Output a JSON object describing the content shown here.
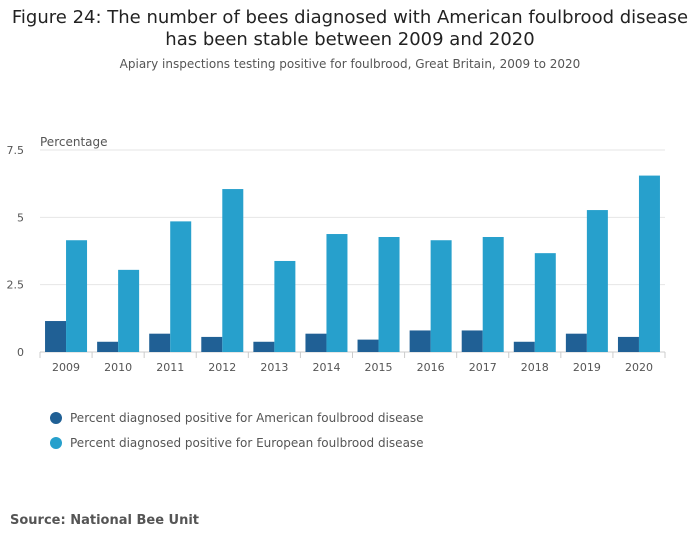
{
  "chart_data": {
    "type": "bar",
    "title": "Figure 24: The number of bees diagnosed with American foulbrood disease has been stable between 2009 and 2020",
    "title_lines": [
      "Figure 24: The number of bees diagnosed with American foulbrood disease",
      "has been stable between 2009 and 2020"
    ],
    "subtitle": "Apiary inspections testing positive for foulbrood, Great Britain, 2009 to 2020",
    "ylabel": "Percentage",
    "xlabel": "",
    "ylim": [
      0,
      7.5
    ],
    "yticks": [
      0,
      2.5,
      5,
      7.5
    ],
    "ytick_labels": [
      "0",
      "2.5",
      "5",
      "7.5"
    ],
    "grid": true,
    "legend_position": "bottom-left",
    "categories": [
      "2009",
      "2010",
      "2011",
      "2012",
      "2013",
      "2014",
      "2015",
      "2016",
      "2017",
      "2018",
      "2019",
      "2020"
    ],
    "series": [
      {
        "name": "Percent diagnosed positive for American foulbrood disease",
        "color": "#206095",
        "values": [
          1.15,
          0.38,
          0.68,
          0.56,
          0.38,
          0.68,
          0.46,
          0.8,
          0.8,
          0.38,
          0.68,
          0.56
        ]
      },
      {
        "name": "Percent diagnosed positive for European foulbrood disease",
        "color": "#27a0cc",
        "values": [
          4.15,
          3.05,
          4.85,
          6.05,
          3.38,
          4.38,
          4.27,
          4.15,
          4.27,
          3.67,
          5.27,
          6.55
        ]
      }
    ]
  },
  "source": "Source: National Bee Unit"
}
